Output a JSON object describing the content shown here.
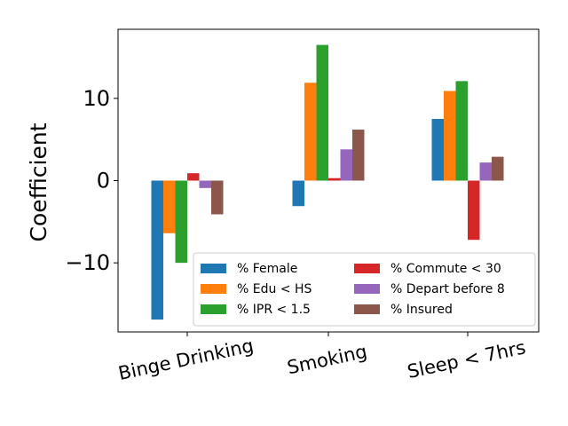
{
  "chart_data": {
    "type": "bar",
    "categories": [
      "Binge Drinking",
      "Smoking",
      "Sleep < 7hrs"
    ],
    "ylabel": "Coefficient",
    "xlabel": "",
    "ylim": [
      -18.4,
      18.4
    ],
    "yticks": [
      -10,
      0,
      10
    ],
    "ytick_labels": [
      "−10",
      "0",
      "10"
    ],
    "grid": false,
    "legend_placement": "lower-right",
    "series": [
      {
        "name": "% Female",
        "color": "#1f77b4",
        "values": [
          -16.9,
          -3.1,
          7.5
        ]
      },
      {
        "name": "% Edu < HS",
        "color": "#ff7f0e",
        "values": [
          -6.4,
          11.9,
          10.9
        ]
      },
      {
        "name": "% IPR < 1.5",
        "color": "#2ca02c",
        "values": [
          -10.0,
          16.5,
          12.1
        ]
      },
      {
        "name": "% Commute < 30",
        "color": "#d62728",
        "values": [
          0.9,
          0.3,
          -7.2
        ]
      },
      {
        "name": "% Depart before 8",
        "color": "#9467bd",
        "values": [
          -0.9,
          3.8,
          2.2
        ]
      },
      {
        "name": "% Insured",
        "color": "#8c564b",
        "values": [
          -4.1,
          6.2,
          2.9
        ]
      }
    ]
  }
}
